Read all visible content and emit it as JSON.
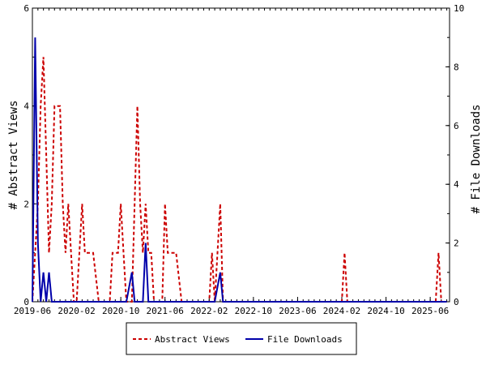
{
  "chart_data": {
    "type": "line",
    "x_tick_labels": [
      "2019-06",
      "2020-02",
      "2020-10",
      "2021-06",
      "2022-02",
      "2022-10",
      "2023-06",
      "2024-02",
      "2024-10",
      "2025-06"
    ],
    "x_tick_month_index": [
      0,
      8,
      16,
      24,
      32,
      40,
      48,
      56,
      64,
      72
    ],
    "x_range_months": [
      0,
      75.5
    ],
    "ylabel_left": "# Abstract Views",
    "ylabel_right": "# File Downloads",
    "ylim_left": [
      0,
      6
    ],
    "ylim_right": [
      0,
      10
    ],
    "yticks_left": [
      0,
      2,
      4,
      6
    ],
    "yticks_right": [
      0,
      2,
      4,
      6,
      8,
      10
    ],
    "legend_position": "bottom-center",
    "series": [
      {
        "name": "Abstract Views",
        "axis": "left",
        "color": "#cc0000",
        "style": "dashed",
        "points": [
          [
            0,
            0
          ],
          [
            0.5,
            1
          ],
          [
            1,
            2
          ],
          [
            1.5,
            4
          ],
          [
            2,
            5
          ],
          [
            2.5,
            3
          ],
          [
            3,
            1
          ],
          [
            3.5,
            2
          ],
          [
            4,
            4
          ],
          [
            4.5,
            4
          ],
          [
            5,
            4
          ],
          [
            5.5,
            2
          ],
          [
            6,
            1
          ],
          [
            6.5,
            2
          ],
          [
            7,
            1
          ],
          [
            7.5,
            0
          ],
          [
            8,
            0
          ],
          [
            8.5,
            1
          ],
          [
            9,
            2
          ],
          [
            9.5,
            1
          ],
          [
            10,
            1
          ],
          [
            10.5,
            1
          ],
          [
            11,
            1
          ],
          [
            12,
            0
          ],
          [
            13,
            0
          ],
          [
            14,
            0
          ],
          [
            14.5,
            1
          ],
          [
            15,
            1
          ],
          [
            15.5,
            1
          ],
          [
            16,
            2
          ],
          [
            16.5,
            1
          ],
          [
            17,
            0
          ],
          [
            18,
            0
          ],
          [
            18.5,
            2
          ],
          [
            19,
            4
          ],
          [
            19.5,
            2
          ],
          [
            20,
            1
          ],
          [
            20.5,
            2
          ],
          [
            21,
            1
          ],
          [
            21.5,
            1
          ],
          [
            22,
            0
          ],
          [
            23,
            0
          ],
          [
            23.5,
            0
          ],
          [
            24,
            2
          ],
          [
            24.5,
            1
          ],
          [
            25,
            1
          ],
          [
            25.5,
            1
          ],
          [
            26,
            1
          ],
          [
            27,
            0
          ],
          [
            28,
            0
          ],
          [
            29,
            0
          ],
          [
            30,
            0
          ],
          [
            31,
            0
          ],
          [
            32,
            0
          ],
          [
            32.5,
            1
          ],
          [
            33,
            0
          ],
          [
            33.5,
            1
          ],
          [
            34,
            2
          ],
          [
            34.5,
            0
          ],
          [
            35,
            0
          ],
          [
            36,
            0
          ],
          [
            37,
            0
          ],
          [
            38,
            0
          ],
          [
            39,
            0
          ],
          [
            40,
            0
          ],
          [
            41,
            0
          ],
          [
            42,
            0
          ],
          [
            43,
            0
          ],
          [
            44,
            0
          ],
          [
            45,
            0
          ],
          [
            46,
            0
          ],
          [
            47,
            0
          ],
          [
            48,
            0
          ],
          [
            49,
            0
          ],
          [
            50,
            0
          ],
          [
            51,
            0
          ],
          [
            52,
            0
          ],
          [
            53,
            0
          ],
          [
            54,
            0
          ],
          [
            55,
            0
          ],
          [
            56,
            0
          ],
          [
            56.5,
            1
          ],
          [
            57,
            0
          ],
          [
            58,
            0
          ],
          [
            59,
            0
          ],
          [
            60,
            0
          ],
          [
            61,
            0
          ],
          [
            62,
            0
          ],
          [
            63,
            0
          ],
          [
            64,
            0
          ],
          [
            65,
            0
          ],
          [
            66,
            0
          ],
          [
            67,
            0
          ],
          [
            68,
            0
          ],
          [
            69,
            0
          ],
          [
            70,
            0
          ],
          [
            71,
            0
          ],
          [
            72,
            0
          ],
          [
            73,
            0
          ],
          [
            73.5,
            1
          ],
          [
            74,
            0
          ],
          [
            75,
            0
          ]
        ]
      },
      {
        "name": "File Downloads",
        "axis": "right",
        "color": "#0000aa",
        "style": "solid",
        "points": [
          [
            0,
            0
          ],
          [
            0.5,
            9
          ],
          [
            1,
            2
          ],
          [
            1.5,
            0
          ],
          [
            2,
            1
          ],
          [
            2.5,
            0
          ],
          [
            3,
            1
          ],
          [
            3.5,
            0
          ],
          [
            4,
            0
          ],
          [
            5,
            0
          ],
          [
            6,
            0
          ],
          [
            7,
            0
          ],
          [
            8,
            0
          ],
          [
            9,
            0
          ],
          [
            10,
            0
          ],
          [
            11,
            0
          ],
          [
            12,
            0
          ],
          [
            13,
            0
          ],
          [
            14,
            0
          ],
          [
            15,
            0
          ],
          [
            16,
            0
          ],
          [
            17,
            0
          ],
          [
            18,
            1
          ],
          [
            18.5,
            0
          ],
          [
            19,
            0
          ],
          [
            20,
            0
          ],
          [
            20.5,
            2
          ],
          [
            21,
            0
          ],
          [
            22,
            0
          ],
          [
            23,
            0
          ],
          [
            24,
            0
          ],
          [
            25,
            0
          ],
          [
            26,
            0
          ],
          [
            27,
            0
          ],
          [
            28,
            0
          ],
          [
            29,
            0
          ],
          [
            30,
            0
          ],
          [
            31,
            0
          ],
          [
            32,
            0
          ],
          [
            33,
            0
          ],
          [
            34,
            1
          ],
          [
            34.5,
            0
          ],
          [
            35,
            0
          ],
          [
            36,
            0
          ],
          [
            37,
            0
          ],
          [
            38,
            0
          ],
          [
            39,
            0
          ],
          [
            40,
            0
          ],
          [
            41,
            0
          ],
          [
            42,
            0
          ],
          [
            43,
            0
          ],
          [
            44,
            0
          ],
          [
            45,
            0
          ],
          [
            46,
            0
          ],
          [
            47,
            0
          ],
          [
            48,
            0
          ],
          [
            49,
            0
          ],
          [
            50,
            0
          ],
          [
            51,
            0
          ],
          [
            52,
            0
          ],
          [
            53,
            0
          ],
          [
            54,
            0
          ],
          [
            55,
            0
          ],
          [
            56,
            0
          ],
          [
            57,
            0
          ],
          [
            58,
            0
          ],
          [
            59,
            0
          ],
          [
            60,
            0
          ],
          [
            61,
            0
          ],
          [
            62,
            0
          ],
          [
            63,
            0
          ],
          [
            64,
            0
          ],
          [
            65,
            0
          ],
          [
            66,
            0
          ],
          [
            67,
            0
          ],
          [
            68,
            0
          ],
          [
            69,
            0
          ],
          [
            70,
            0
          ],
          [
            71,
            0
          ],
          [
            72,
            0
          ],
          [
            73,
            0
          ],
          [
            74,
            0
          ],
          [
            75,
            0
          ]
        ]
      }
    ]
  }
}
